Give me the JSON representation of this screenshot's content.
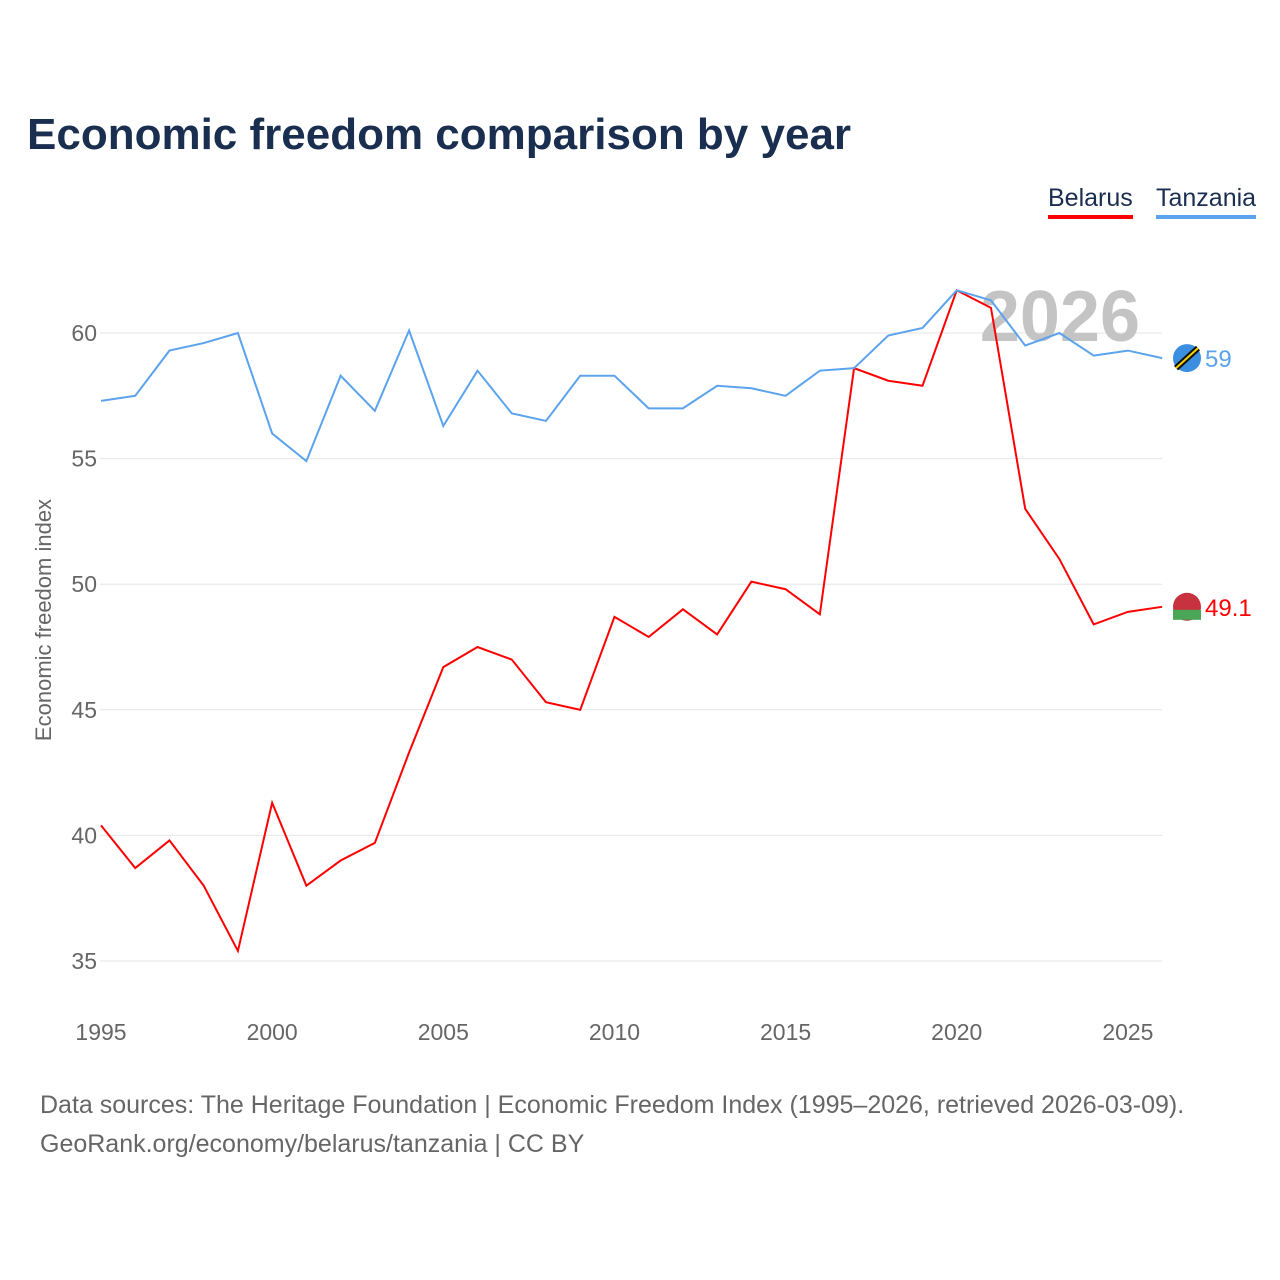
{
  "chart_data": {
    "type": "line",
    "title": "Economic freedom comparison by year",
    "xlabel": "",
    "ylabel": "Economic freedom index",
    "xlim": [
      1995,
      2026
    ],
    "ylim": [
      34,
      63
    ],
    "yticks": [
      35,
      40,
      45,
      50,
      55,
      60
    ],
    "xticks": [
      1995,
      2000,
      2005,
      2010,
      2015,
      2020,
      2025
    ],
    "grid": true,
    "legend_position": "top-right",
    "watermark_year": "2026",
    "x": [
      1995,
      1996,
      1997,
      1998,
      1999,
      2000,
      2001,
      2002,
      2003,
      2004,
      2005,
      2006,
      2007,
      2008,
      2009,
      2010,
      2011,
      2012,
      2013,
      2014,
      2015,
      2016,
      2017,
      2018,
      2019,
      2020,
      2021,
      2022,
      2023,
      2024,
      2025,
      2026
    ],
    "series": [
      {
        "name": "Belarus",
        "color": "#ff0000",
        "end_label": "49.1",
        "values": [
          40.4,
          38.7,
          39.8,
          38.0,
          35.4,
          41.3,
          38.0,
          39.0,
          39.7,
          43.3,
          46.7,
          47.5,
          47.0,
          45.3,
          45.0,
          48.7,
          47.9,
          49.0,
          48.0,
          50.1,
          49.8,
          48.8,
          58.6,
          58.1,
          57.9,
          61.7,
          61.0,
          53.0,
          51.0,
          48.4,
          48.9,
          49.1
        ]
      },
      {
        "name": "Tanzania",
        "color": "#5ba3ec",
        "end_label": "59",
        "values": [
          57.3,
          57.5,
          59.3,
          59.6,
          60.0,
          56.0,
          54.9,
          58.3,
          56.9,
          60.1,
          56.3,
          58.5,
          56.8,
          56.5,
          58.3,
          58.3,
          57.0,
          57.0,
          57.9,
          57.8,
          57.5,
          58.5,
          58.6,
          59.9,
          60.2,
          61.7,
          61.3,
          59.5,
          60.0,
          59.1,
          59.3,
          59.0
        ]
      }
    ]
  },
  "footer": {
    "line1": "Data sources: The Heritage Foundation | Economic Freedom Index (1995–2026, retrieved 2026-03-09).",
    "line2": "GeoRank.org/economy/belarus/tanzania | CC BY"
  }
}
